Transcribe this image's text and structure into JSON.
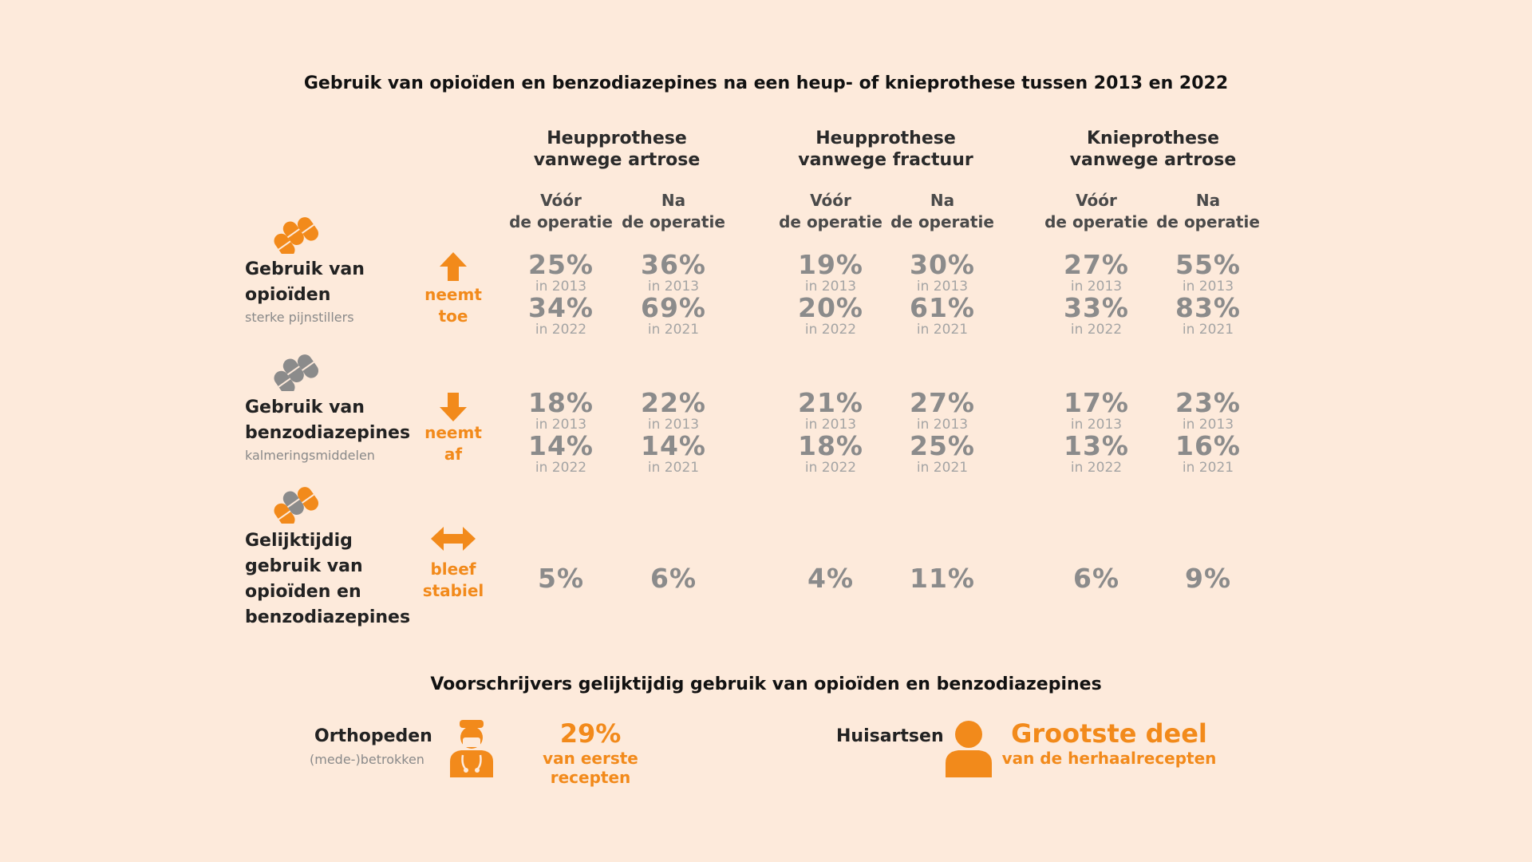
{
  "title": "Gebruik van opioïden en benzodiazepines na een heup- of knieprothese tussen 2013 en 2022",
  "groups": [
    {
      "line1": "Heupprothese",
      "line2": "vanwege artrose"
    },
    {
      "line1": "Heupprothese",
      "line2": "vanwege fractuur"
    },
    {
      "line1": "Knieprothese",
      "line2": "vanwege artrose"
    }
  ],
  "subheads": {
    "before_line1": "Vóór",
    "before_line2": "de operatie",
    "after_line1": "Na",
    "after_line2": "de operatie"
  },
  "rows": {
    "opioids": {
      "label1": "Gebruik van",
      "label2": "opioïden",
      "sub": "sterke pijnstillers",
      "trend1": "neemt",
      "trend2": "toe"
    },
    "benzo": {
      "label1": "Gebruik van",
      "label2": "benzodiazepines",
      "sub": "kalmeringsmiddelen",
      "trend1": "neemt",
      "trend2": "af"
    },
    "combined": {
      "label1": "Gelijktijdig",
      "label2": "gebruik van",
      "label3": "opioïden en",
      "label4": "benzodiazepines",
      "trend1": "bleef",
      "trend2": "stabiel"
    }
  },
  "values": {
    "opioids": [
      {
        "a": "25%",
        "ay": "in 2013",
        "b": "34%",
        "by": "in 2022"
      },
      {
        "a": "36%",
        "ay": "in 2013",
        "b": "69%",
        "by": "in 2021"
      },
      {
        "a": "19%",
        "ay": "in 2013",
        "b": "20%",
        "by": "in 2022"
      },
      {
        "a": "30%",
        "ay": "in 2013",
        "b": "61%",
        "by": "in 2021"
      },
      {
        "a": "27%",
        "ay": "in 2013",
        "b": "33%",
        "by": "in 2022"
      },
      {
        "a": "55%",
        "ay": "in 2013",
        "b": "83%",
        "by": "in 2021"
      }
    ],
    "benzo": [
      {
        "a": "18%",
        "ay": "in 2013",
        "b": "14%",
        "by": "in 2022"
      },
      {
        "a": "22%",
        "ay": "in 2013",
        "b": "14%",
        "by": "in 2021"
      },
      {
        "a": "21%",
        "ay": "in 2013",
        "b": "18%",
        "by": "in 2022"
      },
      {
        "a": "27%",
        "ay": "in 2013",
        "b": "25%",
        "by": "in 2021"
      },
      {
        "a": "17%",
        "ay": "in 2013",
        "b": "13%",
        "by": "in 2022"
      },
      {
        "a": "23%",
        "ay": "in 2013",
        "b": "16%",
        "by": "in 2021"
      }
    ],
    "combined": [
      "5%",
      "6%",
      "4%",
      "11%",
      "6%",
      "9%"
    ]
  },
  "prescribers": {
    "title": "Voorschrijvers gelijktijdig gebruik van opioïden en benzodiazepines",
    "ortho_label": "Orthopeden",
    "ortho_sub": "(mede-)betrokken",
    "ortho_big": "29%",
    "ortho_small": "van eerste recepten",
    "gp_label": "Huisartsen",
    "gp_big": "Grootste deel",
    "gp_small": "van de herhaalrecepten"
  },
  "colors": {
    "accent": "#f28a1b",
    "grey": "#8b8b8b",
    "background": "#fdeadb"
  }
}
